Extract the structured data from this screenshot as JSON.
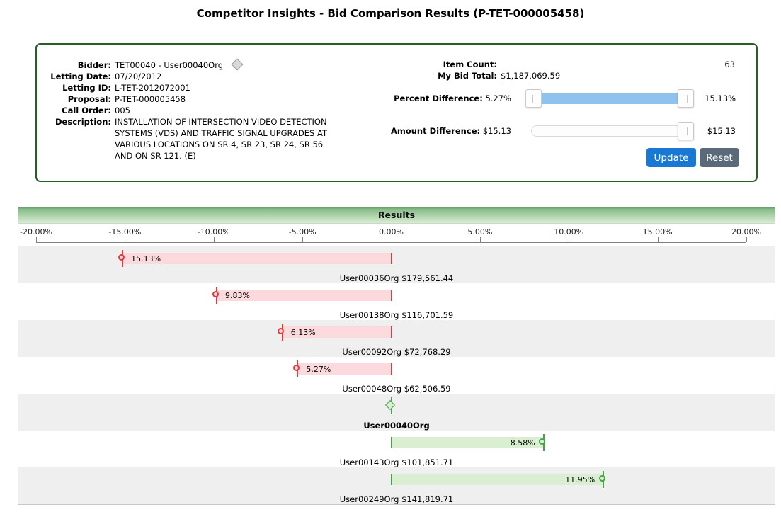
{
  "title": "Competitor Insights - Bid Comparison Results (P-TET-000005458)",
  "colors": {
    "panel_border": "#265e26",
    "header_green": "#86bc88",
    "header_green_light": "#d9edd3",
    "slider_fill": "#8fc3ee",
    "update_btn": "#1878d4",
    "reset_btn": "#5a6a7a",
    "negative_bar": "#fbd9dc",
    "negative_accent": "#e23b3b",
    "positive_bar": "#daefd2",
    "positive_accent": "#44a348"
  },
  "panel": {
    "info": [
      {
        "label": "Bidder:",
        "value": "TET00040 - User00040Org"
      },
      {
        "label": "Letting Date:",
        "value": "07/20/2012"
      },
      {
        "label": "Letting ID:",
        "value": "L-TET-2012072001"
      },
      {
        "label": "Proposal:",
        "value": "P-TET-000005458"
      },
      {
        "label": "Call Order:",
        "value": "005"
      },
      {
        "label": "Description:",
        "value": "INSTALLATION OF INTERSECTION VIDEO DETECTION SYSTEMS (VDS) AND TRAFFIC SIGNAL UPGRADES AT VARIOUS LOCATIONS ON SR 4, SR 23, SR 24, SR 56 AND ON SR 121. (E)"
      }
    ],
    "item_count_label": "Item Count:",
    "item_count": "63",
    "my_bid_label": "My Bid Total:",
    "my_bid_total": "$1,187,069.59",
    "percent": {
      "label": "Percent Difference:",
      "current": "5.27%",
      "max": "15.13%"
    },
    "amount": {
      "label": "Amount Difference:",
      "current": "$15.13",
      "max": "$15.13"
    },
    "buttons": {
      "update": "Update",
      "reset": "Reset"
    }
  },
  "results": {
    "header": "Results"
  },
  "chart_data": {
    "type": "bar",
    "orientation": "horizontal-diverging",
    "title": "Results",
    "axis": {
      "min": -20,
      "max": 20,
      "tick_step": 5,
      "tick_labels": [
        "-20.00%",
        "-15.00%",
        "-10.00%",
        "-5.00%",
        "0.00%",
        "5.00%",
        "10.00%",
        "15.00%",
        "20.00%"
      ]
    },
    "rows": [
      {
        "org": "User00036Org",
        "amount": "$179,561.44",
        "percent": -15.13,
        "percent_label": "15.13%"
      },
      {
        "org": "User00138Org",
        "amount": "$116,701.59",
        "percent": -9.83,
        "percent_label": "9.83%"
      },
      {
        "org": "User00092Org",
        "amount": "$72,768.29",
        "percent": -6.13,
        "percent_label": "6.13%"
      },
      {
        "org": "User00048Org",
        "amount": "$62,506.59",
        "percent": -5.27,
        "percent_label": "5.27%"
      },
      {
        "org": "User00040Org",
        "amount": "",
        "percent": 0,
        "percent_label": "",
        "is_bidder": true
      },
      {
        "org": "User00143Org",
        "amount": "$101,851.71",
        "percent": 8.58,
        "percent_label": "8.58%"
      },
      {
        "org": "User00249Org",
        "amount": "$141,819.71",
        "percent": 11.95,
        "percent_label": "11.95%"
      }
    ]
  }
}
